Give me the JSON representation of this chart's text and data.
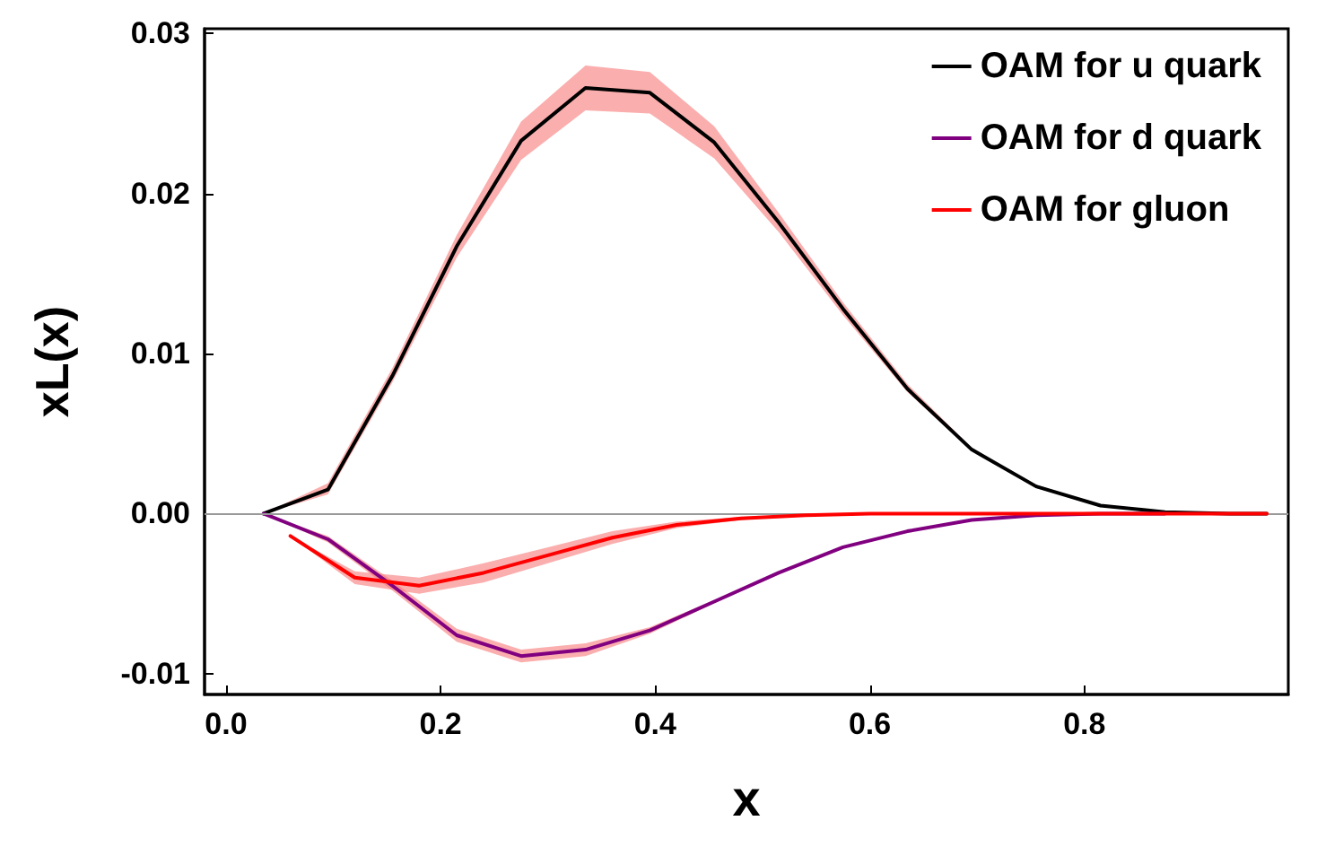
{
  "chart_data": {
    "type": "line",
    "xlabel": "x",
    "ylabel": "xL(x)",
    "x": [
      0.035,
      0.095,
      0.155,
      0.215,
      0.275,
      0.335,
      0.395,
      0.455,
      0.515,
      0.575,
      0.635,
      0.695,
      0.755,
      0.815,
      0.875,
      0.935,
      0.97
    ],
    "series": [
      {
        "name": "OAM for u quark",
        "color": "#000000",
        "values": [
          0,
          0.0015,
          0.0086,
          0.0167,
          0.0233,
          0.0266,
          0.0263,
          0.0232,
          0.0182,
          0.0128,
          0.0078,
          0.004,
          0.0017,
          0.0005,
          0.0001,
          0,
          0
        ],
        "lower": [
          0,
          0.0012,
          0.0082,
          0.016,
          0.0221,
          0.0252,
          0.025,
          0.0222,
          0.0176,
          0.0124,
          0.0076,
          0.0039,
          0.0016,
          0.0005,
          0.0001,
          0,
          0
        ],
        "upper": [
          0,
          0.0019,
          0.0091,
          0.0174,
          0.0245,
          0.028,
          0.0276,
          0.0242,
          0.0188,
          0.0132,
          0.0081,
          0.0041,
          0.0018,
          0.0005,
          0.0001,
          0,
          0
        ]
      },
      {
        "name": "OAM for d quark",
        "color": "#800080",
        "values": [
          0,
          -0.0016,
          -0.0045,
          -0.0076,
          -0.0089,
          -0.0085,
          -0.0073,
          -0.0055,
          -0.0037,
          -0.0021,
          -0.0011,
          -0.0004,
          -0.0001,
          0,
          0,
          null,
          null
        ],
        "lower": [
          0,
          -0.0018,
          -0.0048,
          -0.008,
          -0.0093,
          -0.0089,
          -0.0075,
          -0.0056,
          -0.0037,
          -0.0021,
          -0.0011,
          -0.0004,
          -0.0001,
          0,
          0,
          0,
          0
        ],
        "upper": [
          0,
          -0.0014,
          -0.0042,
          -0.0072,
          -0.0085,
          -0.0081,
          -0.0071,
          -0.0054,
          -0.0037,
          -0.0021,
          -0.0011,
          -0.0004,
          -0.0001,
          0,
          0,
          0,
          0
        ]
      },
      {
        "name": "OAM for gluon",
        "color": "#ff0000",
        "x": [
          0.06,
          0.12,
          0.18,
          0.24,
          0.3,
          0.36,
          0.42,
          0.48,
          0.54,
          0.6,
          0.66,
          0.72,
          0.78,
          0.84,
          0.9,
          0.97
        ],
        "values": [
          -0.0014,
          -0.004,
          -0.0045,
          -0.0037,
          -0.0026,
          -0.0015,
          -0.0007,
          -0.0003,
          -0.0001,
          0,
          0,
          0,
          0,
          0,
          0,
          0
        ],
        "lower": [
          -0.0014,
          -0.0044,
          -0.005,
          -0.0043,
          -0.0031,
          -0.0019,
          -0.0009,
          -0.0004,
          -0.0001,
          0,
          0,
          0,
          0,
          0,
          0,
          0
        ],
        "upper": [
          -0.0014,
          -0.0036,
          -0.004,
          -0.0031,
          -0.0021,
          -0.0011,
          -0.0005,
          -0.0002,
          -0.0001,
          0,
          0,
          0,
          0,
          0,
          0,
          0
        ]
      }
    ],
    "xlim": [
      -0.02,
      0.99
    ],
    "xticks": [
      {
        "value": 0,
        "label": "0.0"
      },
      0.2,
      0.4,
      0.6,
      0.8
    ],
    "ylim": [
      -0.0113,
      0.0303
    ],
    "yticks": [
      {
        "value": -0.01,
        "label": "-0.01"
      },
      {
        "value": 0,
        "label": "0.00"
      },
      {
        "value": 0.01,
        "label": "0.01"
      },
      {
        "value": 0.02,
        "label": "0.02"
      },
      {
        "value": 0.03,
        "label": "0.03"
      }
    ],
    "ref_lines": [
      {
        "axis": "y",
        "value": 0,
        "label": null,
        "color": "#999999"
      }
    ],
    "legend": "top right",
    "grid": false,
    "marker": "none",
    "line_style": "solid"
  }
}
